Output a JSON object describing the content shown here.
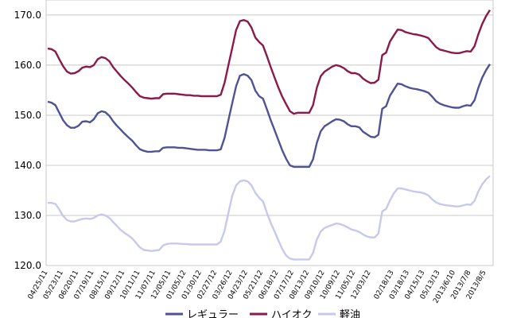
{
  "chart_data": {
    "type": "line",
    "title": "",
    "xlabel": "",
    "ylabel": "",
    "ylim": [
      120,
      173
    ],
    "yticks": [
      120,
      130,
      140,
      150,
      160,
      170
    ],
    "ytick_labels": [
      "120.0",
      "130.0",
      "140.0",
      "150.0",
      "160.0",
      "170.0"
    ],
    "grid": true,
    "legend_position": "bottom",
    "xtick_labels": [
      "04/25/11",
      "05/23/11",
      "06/20/11",
      "07/19/11",
      "08/15/11",
      "09/12/11",
      "10/11/11",
      "11/07/11",
      "12/05/11",
      "01/05/12",
      "01/30/12",
      "02/27/12",
      "03/26/12",
      "04/23/12",
      "05/21/12",
      "06/18/12",
      "07/17/12",
      "08/13/12",
      "09/10/12",
      "10/09/12",
      "11/05/12",
      "12/03/12",
      "02/18/13",
      "03/18/13",
      "04/15/13",
      "05/13/13",
      "2013/6/10",
      "2013/7/8",
      "2013/8/5"
    ],
    "x": [
      "04/25/11",
      "05/02/11",
      "05/09/11",
      "05/16/11",
      "05/23/11",
      "05/30/11",
      "06/06/11",
      "06/13/11",
      "06/20/11",
      "06/27/11",
      "07/04/11",
      "07/11/11",
      "07/19/11",
      "07/25/11",
      "08/01/11",
      "08/08/11",
      "08/15/11",
      "08/22/11",
      "08/29/11",
      "09/05/11",
      "09/12/11",
      "09/20/11",
      "09/26/11",
      "10/03/11",
      "10/11/11",
      "10/17/11",
      "10/24/11",
      "10/31/11",
      "11/07/11",
      "11/14/11",
      "11/21/11",
      "11/28/11",
      "12/05/11",
      "12/12/11",
      "12/19/11",
      "12/26/11",
      "01/05/12",
      "01/10/12",
      "01/16/12",
      "01/23/12",
      "01/30/12",
      "02/06/12",
      "02/13/12",
      "02/20/12",
      "02/27/12",
      "03/05/12",
      "03/12/12",
      "03/19/12",
      "03/26/12",
      "04/02/12",
      "04/09/12",
      "04/16/12",
      "04/23/12",
      "04/30/12",
      "05/07/12",
      "05/14/12",
      "05/21/12",
      "05/28/12",
      "06/04/12",
      "06/11/12",
      "06/18/12",
      "06/25/12",
      "07/02/12",
      "07/09/12",
      "07/17/12",
      "07/23/12",
      "07/30/12",
      "08/06/12",
      "08/13/12",
      "08/20/12",
      "08/27/12",
      "09/03/12",
      "09/10/12",
      "09/18/12",
      "09/24/12",
      "10/01/12",
      "10/09/12",
      "10/15/12",
      "10/22/12",
      "10/29/12",
      "11/05/12",
      "11/12/12",
      "11/19/12",
      "11/26/12",
      "12/03/12",
      "12/10/12",
      "12/17/12",
      "01/28/13",
      "02/04/13",
      "02/12/13",
      "02/18/13",
      "02/25/13",
      "03/04/13",
      "03/11/13",
      "03/18/13",
      "03/25/13",
      "04/01/13",
      "04/08/13",
      "04/15/13",
      "04/22/13",
      "04/30/13",
      "05/07/13",
      "05/13/13",
      "05/20/13",
      "05/27/13",
      "06/03/13",
      "2013/6/10",
      "2013/6/17",
      "2013/6/24",
      "2013/7/1",
      "2013/7/8",
      "2013/7/16",
      "2013/7/22",
      "2013/7/29",
      "2013/8/5",
      "2013/8/12"
    ],
    "series": [
      {
        "name": "レギュラー",
        "color": "#4f5395",
        "values": [
          152.7,
          152.5,
          152.0,
          150.5,
          149.0,
          148.0,
          147.5,
          147.5,
          147.9,
          148.7,
          148.8,
          148.6,
          149.2,
          150.4,
          150.8,
          150.6,
          149.9,
          148.8,
          147.9,
          147.1,
          146.3,
          145.6,
          144.9,
          144.0,
          143.2,
          142.9,
          142.7,
          142.7,
          142.8,
          142.8,
          143.5,
          143.6,
          143.6,
          143.6,
          143.5,
          143.5,
          143.4,
          143.3,
          143.2,
          143.1,
          143.1,
          143.1,
          143.0,
          143.0,
          143.0,
          143.2,
          145.5,
          149.0,
          152.5,
          155.8,
          157.9,
          158.2,
          157.9,
          157.0,
          154.9,
          153.8,
          153.3,
          151.2,
          149.0,
          147.0,
          145.0,
          143.0,
          141.3,
          140.0,
          139.7,
          139.7,
          139.7,
          139.7,
          139.7,
          141.2,
          144.5,
          146.8,
          147.8,
          148.3,
          148.8,
          149.2,
          149.1,
          148.8,
          148.2,
          147.8,
          147.8,
          147.6,
          146.7,
          146.2,
          145.7,
          145.6,
          146.1,
          151.3,
          151.8,
          153.9,
          155.1,
          156.3,
          156.2,
          155.8,
          155.5,
          155.3,
          155.2,
          155.0,
          154.8,
          154.5,
          153.7,
          152.8,
          152.3,
          152.0,
          151.8,
          151.6,
          151.5,
          151.5,
          151.8,
          152.0,
          151.9,
          153.0,
          155.5,
          157.5,
          159.0,
          160.2
        ]
      },
      {
        "name": "ハイオク",
        "color": "#8b1a4a",
        "values": [
          163.3,
          163.2,
          162.7,
          161.2,
          159.8,
          158.7,
          158.3,
          158.4,
          158.8,
          159.5,
          159.7,
          159.6,
          160.0,
          161.2,
          161.6,
          161.4,
          160.8,
          159.6,
          158.7,
          157.8,
          157.0,
          156.3,
          155.5,
          154.6,
          153.8,
          153.5,
          153.4,
          153.3,
          153.4,
          153.4,
          154.2,
          154.3,
          154.3,
          154.3,
          154.2,
          154.1,
          154.0,
          154.0,
          153.9,
          153.9,
          153.8,
          153.8,
          153.8,
          153.8,
          153.8,
          154.1,
          156.5,
          160.0,
          163.5,
          167.0,
          168.8,
          169.0,
          168.7,
          167.5,
          165.5,
          164.6,
          163.9,
          161.8,
          159.6,
          157.5,
          155.5,
          153.7,
          152.2,
          150.8,
          150.3,
          150.5,
          150.5,
          150.5,
          150.5,
          152.0,
          155.5,
          157.8,
          158.7,
          159.2,
          159.7,
          160.0,
          159.8,
          159.4,
          158.8,
          158.4,
          158.4,
          158.1,
          157.3,
          156.8,
          156.4,
          156.5,
          157.1,
          162.0,
          162.5,
          164.7,
          165.9,
          167.1,
          167.0,
          166.6,
          166.4,
          166.2,
          166.1,
          165.9,
          165.7,
          165.4,
          164.5,
          163.6,
          163.1,
          162.9,
          162.7,
          162.5,
          162.4,
          162.4,
          162.6,
          162.8,
          162.7,
          163.8,
          166.2,
          168.2,
          169.8,
          171.0
        ]
      },
      {
        "name": "軽油",
        "color": "#c7c9ec",
        "values": [
          132.5,
          132.5,
          132.3,
          131.2,
          129.9,
          129.1,
          128.8,
          128.8,
          129.1,
          129.3,
          129.4,
          129.3,
          129.5,
          130.0,
          130.2,
          130.0,
          129.5,
          128.7,
          127.9,
          127.1,
          126.5,
          126.0,
          125.4,
          124.5,
          123.6,
          123.1,
          123.0,
          122.9,
          123.0,
          123.1,
          124.0,
          124.3,
          124.4,
          124.4,
          124.4,
          124.3,
          124.3,
          124.2,
          124.2,
          124.2,
          124.2,
          124.2,
          124.2,
          124.2,
          124.2,
          124.8,
          127.0,
          130.5,
          134.0,
          136.0,
          136.8,
          137.0,
          136.8,
          136.0,
          134.5,
          133.5,
          132.8,
          130.5,
          128.5,
          126.8,
          125.0,
          123.3,
          122.0,
          121.4,
          121.2,
          121.2,
          121.2,
          121.2,
          121.2,
          122.5,
          125.2,
          126.8,
          127.5,
          127.8,
          128.1,
          128.4,
          128.3,
          128.0,
          127.6,
          127.2,
          127.0,
          126.7,
          126.2,
          125.8,
          125.6,
          125.6,
          126.4,
          130.8,
          131.3,
          133.0,
          134.4,
          135.4,
          135.4,
          135.2,
          135.0,
          134.8,
          134.7,
          134.6,
          134.4,
          134.0,
          133.2,
          132.6,
          132.3,
          132.1,
          132.0,
          131.9,
          131.8,
          131.8,
          132.0,
          132.2,
          132.1,
          132.9,
          134.8,
          136.2,
          137.2,
          137.9
        ]
      }
    ]
  }
}
